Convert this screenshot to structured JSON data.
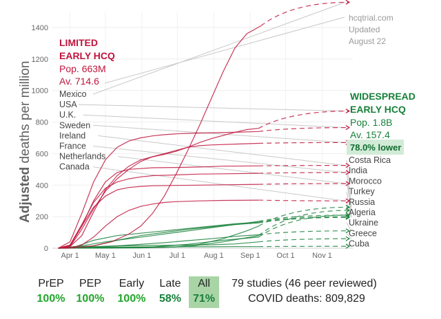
{
  "chart_data": {
    "type": "line",
    "ylabel_bold": "Adjusted",
    "ylabel_rest": "deaths per million",
    "ylim": [
      0,
      1500
    ],
    "yticks": [
      0,
      200,
      400,
      600,
      800,
      1000,
      1200,
      1400
    ],
    "x_labels": [
      {
        "label": "Apr 1",
        "day": 0
      },
      {
        "label": "May 1",
        "day": 30
      },
      {
        "label": "Jun 1",
        "day": 61
      },
      {
        "label": "Jul 1",
        "day": 91
      },
      {
        "label": "Aug 1",
        "day": 122
      },
      {
        "label": "Sep 1",
        "day": 153
      },
      {
        "label": "Oct 1",
        "day": 183
      },
      {
        "label": "Nov 1",
        "day": 214
      }
    ],
    "xlim_days": [
      -15,
      240
    ],
    "projection_end_day": 237,
    "limited": {
      "title_line1": "LIMITED",
      "title_line2": "EARLY HCQ",
      "population": "Pop. 663M",
      "average": "Av. 714.6",
      "color": "#c0143c",
      "countries": [
        {
          "name": "Mexico",
          "points": [
            [
              -5,
              0
            ],
            [
              5,
              3
            ],
            [
              20,
              15
            ],
            [
              35,
              40
            ],
            [
              50,
              90
            ],
            [
              60,
              140
            ],
            [
              70,
              220
            ],
            [
              80,
              330
            ],
            [
              90,
              470
            ],
            [
              100,
              620
            ],
            [
              110,
              780
            ],
            [
              120,
              950
            ],
            [
              130,
              1120
            ],
            [
              140,
              1270
            ],
            [
              150,
              1360
            ],
            [
              162,
              1410
            ]
          ],
          "end": 1560
        },
        {
          "name": "USA",
          "points": [
            [
              -10,
              0
            ],
            [
              0,
              10
            ],
            [
              10,
              80
            ],
            [
              20,
              230
            ],
            [
              30,
              370
            ],
            [
              40,
              460
            ],
            [
              50,
              520
            ],
            [
              60,
              560
            ],
            [
              70,
              580
            ],
            [
              80,
              595
            ],
            [
              90,
              615
            ],
            [
              100,
              640
            ],
            [
              110,
              670
            ],
            [
              120,
              695
            ],
            [
              130,
              715
            ],
            [
              140,
              735
            ],
            [
              150,
              752
            ],
            [
              160,
              760
            ]
          ],
          "end": 870
        },
        {
          "name": "U.K.",
          "points": [
            [
              -10,
              0
            ],
            [
              0,
              40
            ],
            [
              10,
              220
            ],
            [
              20,
              420
            ],
            [
              30,
              560
            ],
            [
              40,
              640
            ],
            [
              50,
              680
            ],
            [
              60,
              700
            ],
            [
              70,
              712
            ],
            [
              80,
              720
            ],
            [
              90,
              725
            ],
            [
              100,
              728
            ],
            [
              120,
              732
            ],
            [
              140,
              735
            ],
            [
              160,
              740
            ]
          ],
          "end": 765
        },
        {
          "name": "Sweden",
          "points": [
            [
              -10,
              0
            ],
            [
              0,
              10
            ],
            [
              10,
              120
            ],
            [
              20,
              250
            ],
            [
              30,
              360
            ],
            [
              40,
              440
            ],
            [
              50,
              500
            ],
            [
              60,
              550
            ],
            [
              70,
              580
            ],
            [
              80,
              600
            ],
            [
              90,
              620
            ],
            [
              100,
              640
            ],
            [
              110,
              650
            ],
            [
              120,
              655
            ],
            [
              140,
              660
            ],
            [
              160,
              665
            ]
          ],
          "end": 670
        },
        {
          "name": "Ireland",
          "points": [
            [
              -10,
              0
            ],
            [
              0,
              15
            ],
            [
              10,
              140
            ],
            [
              20,
              300
            ],
            [
              30,
              420
            ],
            [
              40,
              480
            ],
            [
              50,
              500
            ],
            [
              60,
              505
            ],
            [
              70,
              510
            ],
            [
              90,
              512
            ],
            [
              110,
              515
            ],
            [
              130,
              520
            ],
            [
              160,
              522
            ]
          ],
          "end": 525
        },
        {
          "name": "France",
          "points": [
            [
              -10,
              0
            ],
            [
              0,
              20
            ],
            [
              10,
              150
            ],
            [
              20,
              290
            ],
            [
              30,
              380
            ],
            [
              40,
              420
            ],
            [
              50,
              440
            ],
            [
              60,
              452
            ],
            [
              70,
              460
            ],
            [
              90,
              465
            ],
            [
              110,
              470
            ],
            [
              130,
              472
            ],
            [
              160,
              475
            ]
          ],
          "end": 480
        },
        {
          "name": "Netherlands",
          "points": [
            [
              -10,
              0
            ],
            [
              0,
              20
            ],
            [
              10,
              140
            ],
            [
              20,
              260
            ],
            [
              30,
              330
            ],
            [
              40,
              370
            ],
            [
              50,
              385
            ],
            [
              60,
              392
            ],
            [
              70,
              396
            ],
            [
              90,
              398
            ],
            [
              110,
              400
            ],
            [
              130,
              402
            ],
            [
              160,
              405
            ]
          ],
          "end": 410
        },
        {
          "name": "Canada",
          "points": [
            [
              -10,
              0
            ],
            [
              0,
              2
            ],
            [
              10,
              20
            ],
            [
              20,
              70
            ],
            [
              30,
              140
            ],
            [
              40,
              200
            ],
            [
              50,
              240
            ],
            [
              60,
              265
            ],
            [
              70,
              280
            ],
            [
              80,
              290
            ],
            [
              90,
              295
            ],
            [
              110,
              300
            ],
            [
              130,
              303
            ],
            [
              160,
              305
            ]
          ],
          "end": 300
        }
      ]
    },
    "widespread": {
      "title_line1": "WIDESPREAD",
      "title_line2": "EARLY HCQ",
      "population": "Pop. 1.8B",
      "average": "Av. 157.4",
      "lower": "78.0% lower",
      "color": "#17803a",
      "countries": [
        {
          "name": "Costa Rica",
          "points": [
            [
              -10,
              0
            ],
            [
              60,
              2
            ],
            [
              90,
              8
            ],
            [
              110,
              25
            ],
            [
              130,
              60
            ],
            [
              150,
              110
            ],
            [
              160,
              140
            ]
          ],
          "end": 260
        },
        {
          "name": "India",
          "points": [
            [
              -10,
              0
            ],
            [
              40,
              2
            ],
            [
              70,
              8
            ],
            [
              100,
              25
            ],
            [
              130,
              50
            ],
            [
              160,
              70
            ]
          ],
          "end": 210
        },
        {
          "name": "Morocco",
          "points": [
            [
              -10,
              0
            ],
            [
              60,
              3
            ],
            [
              100,
              10
            ],
            [
              130,
              40
            ],
            [
              160,
              80
            ]
          ],
          "end": 240
        },
        {
          "name": "Turkey",
          "points": [
            [
              -10,
              0
            ],
            [
              5,
              10
            ],
            [
              20,
              50
            ],
            [
              40,
              80
            ],
            [
              60,
              95
            ],
            [
              80,
              110
            ],
            [
              100,
              125
            ],
            [
              120,
              140
            ],
            [
              140,
              155
            ],
            [
              160,
              165
            ]
          ],
          "end": 200
        },
        {
          "name": "Russia",
          "points": [
            [
              -10,
              0
            ],
            [
              20,
              15
            ],
            [
              40,
              50
            ],
            [
              60,
              80
            ],
            [
              80,
              100
            ],
            [
              100,
              120
            ],
            [
              120,
              135
            ],
            [
              140,
              150
            ],
            [
              160,
              160
            ]
          ],
          "end": 195
        },
        {
          "name": "Algeria",
          "points": [
            [
              -10,
              0
            ],
            [
              10,
              15
            ],
            [
              30,
              40
            ],
            [
              50,
              60
            ],
            [
              70,
              80
            ],
            [
              90,
              100
            ],
            [
              110,
              120
            ],
            [
              130,
              140
            ],
            [
              150,
              160
            ],
            [
              160,
              170
            ]
          ],
          "end": 210
        },
        {
          "name": "Ukraine",
          "points": [
            [
              -10,
              0
            ],
            [
              20,
              5
            ],
            [
              40,
              15
            ],
            [
              60,
              25
            ],
            [
              80,
              35
            ],
            [
              100,
              48
            ],
            [
              120,
              60
            ],
            [
              140,
              75
            ],
            [
              160,
              85
            ]
          ],
          "end": 110
        },
        {
          "name": "Greece",
          "points": [
            [
              -10,
              0
            ],
            [
              0,
              3
            ],
            [
              20,
              10
            ],
            [
              40,
              15
            ],
            [
              60,
              17
            ],
            [
              80,
              18
            ],
            [
              100,
              20
            ],
            [
              120,
              22
            ],
            [
              140,
              27
            ],
            [
              160,
              40
            ]
          ],
          "end": 60
        },
        {
          "name": "Cuba",
          "points": [
            [
              -10,
              0
            ],
            [
              0,
              3
            ],
            [
              20,
              5
            ],
            [
              40,
              7
            ],
            [
              60,
              8
            ],
            [
              80,
              8
            ],
            [
              100,
              9
            ],
            [
              120,
              9
            ],
            [
              140,
              10
            ],
            [
              160,
              10
            ]
          ],
          "end": 12
        }
      ]
    },
    "source_lines": [
      "hcqtrial.com",
      "Updated",
      "August 22"
    ]
  },
  "footer": {
    "groups": [
      {
        "label": "PrEP",
        "value": "100%"
      },
      {
        "label": "PEP",
        "value": "100%"
      },
      {
        "label": "Early",
        "value": "100%"
      },
      {
        "label": "Late",
        "value": "58%"
      },
      {
        "label": "All",
        "value": "71%"
      }
    ],
    "studies": "79 studies (46 peer reviewed)",
    "deaths": "COVID deaths: 809,829",
    "colors": {
      "green": "#22a52a",
      "dark_green": "#17803a",
      "all_bg": "#a9d5a6"
    }
  }
}
